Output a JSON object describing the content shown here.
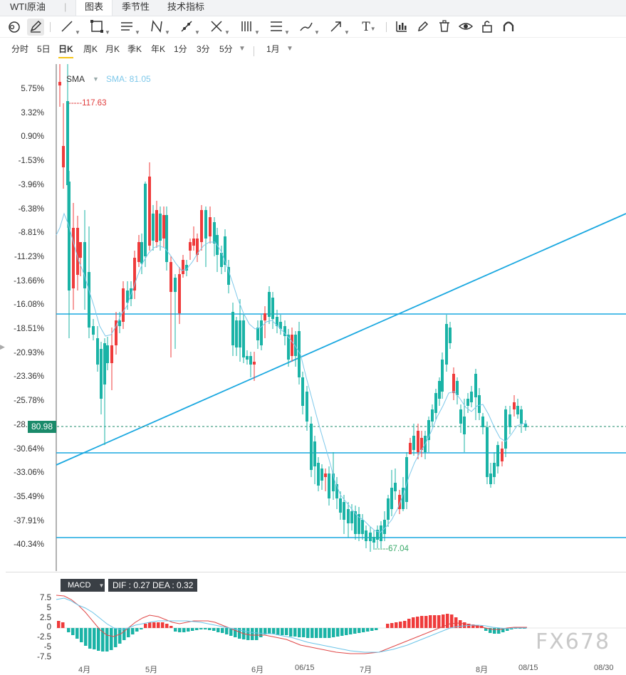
{
  "header": {
    "symbol": "WTI原油",
    "tabs": [
      "图表",
      "季节性",
      "技术指标"
    ],
    "active_tab": "图表"
  },
  "toolbar": {
    "tools": [
      "cycle-icon",
      "pencil-icon",
      "line-icon",
      "rectangle-icon",
      "parallel-lines-icon",
      "pattern-icon",
      "trend-tool-icon",
      "cross-line-icon",
      "bars-icon",
      "fib-icon",
      "brush-icon",
      "arrow-icon",
      "text-icon",
      "indicator-icon",
      "edit-icon",
      "trash-icon",
      "eye-icon",
      "lock-icon",
      "magnet-icon"
    ]
  },
  "periods": {
    "items": [
      "分时",
      "5日",
      "日K",
      "周K",
      "月K",
      "季K",
      "年K",
      "1分",
      "3分",
      "5分"
    ],
    "active": "日K",
    "range_select": "1月"
  },
  "chart": {
    "indicator": "SMA",
    "sma_label": "SMA: 81.05",
    "high_marker": "117.63",
    "low_marker": "67.04",
    "current_price": "80.98",
    "y_labels": [
      "5.75%",
      "3.32%",
      "0.90%",
      "-1.53%",
      "-3.96%",
      "-6.38%",
      "-8.81%",
      "-11.23%",
      "-13.66%",
      "-16.08%",
      "-18.51%",
      "-20.93%",
      "-23.36%",
      "-25.78%",
      "-28.21%",
      "-30.64%",
      "-33.06%",
      "-35.49%",
      "-37.91%",
      "-40.34%"
    ],
    "colors": {
      "up": "#ef3b3b",
      "down": "#1ab3a6",
      "line": "#1aa8e0",
      "sma": "#7ec8ea"
    }
  },
  "macd": {
    "label": "MACD",
    "values_text": "DIF : 0.27  DEA : 0.32",
    "y_labels": [
      "7.5",
      "5",
      "2.5",
      "0",
      "-2.5",
      "-5",
      "-7.5"
    ]
  },
  "xaxis": {
    "labels": [
      "4月",
      "5月",
      "6月",
      "06/15",
      "7月",
      "8月",
      "08/15",
      "08/30"
    ]
  },
  "watermark": "FX678"
}
